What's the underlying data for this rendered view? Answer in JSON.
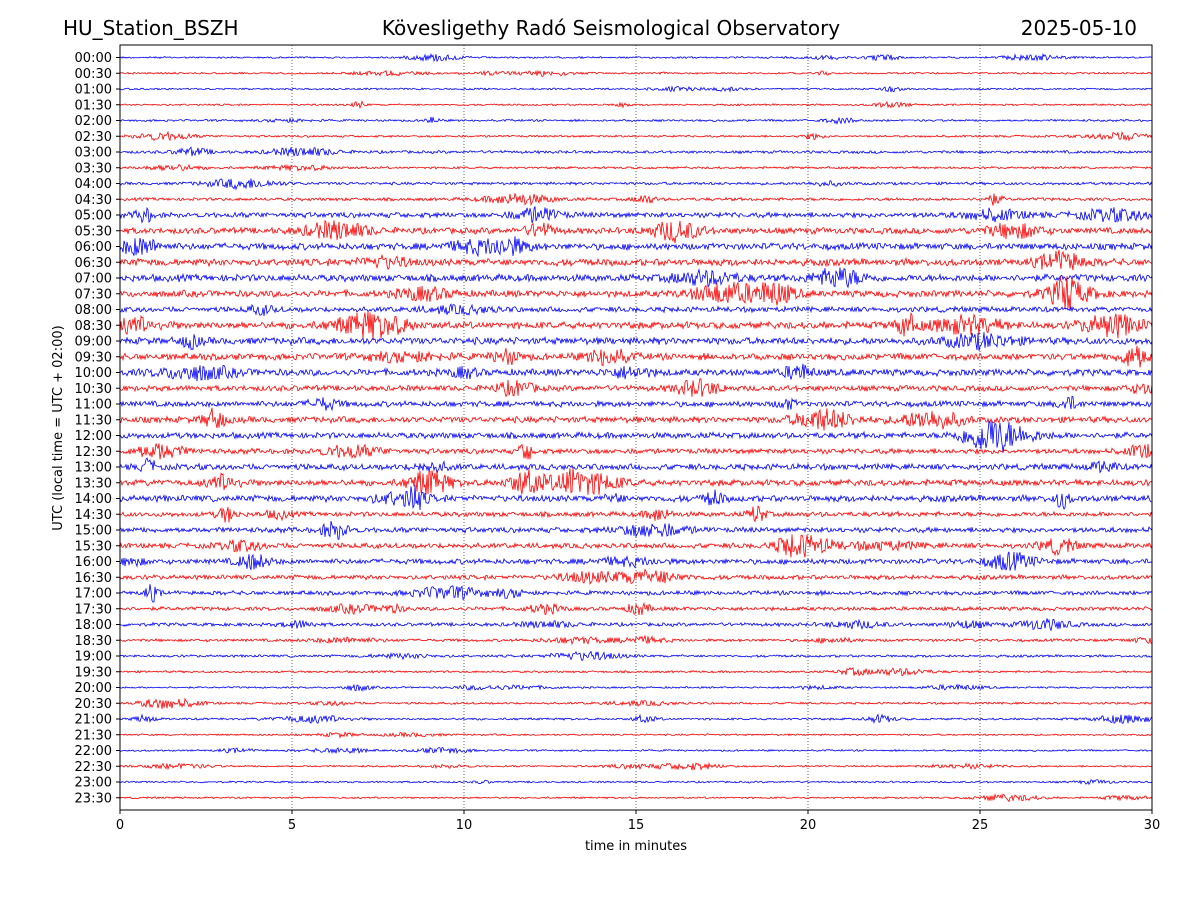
{
  "header": {
    "station": "HU_Station_BSZH",
    "observatory": "Kövesligethy Radó Seismological Observatory",
    "date": "2025-05-10"
  },
  "chart_data": {
    "type": "line",
    "title": "Kövesligethy Radó Seismological Observatory",
    "xlabel": "time in minutes",
    "ylabel": "UTC (local time = UTC + 02:00)",
    "xlim": [
      0,
      30
    ],
    "x_ticks": [
      0,
      5,
      10,
      15,
      20,
      25,
      30
    ],
    "grid": "vertical-dotted",
    "series_colors": [
      "#0000ff",
      "#ff0000"
    ],
    "rows": [
      {
        "label": "00:00",
        "amp": 1
      },
      {
        "label": "00:30",
        "amp": 1
      },
      {
        "label": "01:00",
        "amp": 1
      },
      {
        "label": "01:30",
        "amp": 1
      },
      {
        "label": "02:00",
        "amp": 1.2
      },
      {
        "label": "02:30",
        "amp": 1.2
      },
      {
        "label": "03:00",
        "amp": 1.6
      },
      {
        "label": "03:30",
        "amp": 1.3
      },
      {
        "label": "04:00",
        "amp": 1.6
      },
      {
        "label": "04:30",
        "amp": 1.8
      },
      {
        "label": "05:00",
        "amp": 3
      },
      {
        "label": "05:30",
        "amp": 3.5
      },
      {
        "label": "06:00",
        "amp": 3.8
      },
      {
        "label": "06:30",
        "amp": 4
      },
      {
        "label": "07:00",
        "amp": 4
      },
      {
        "label": "07:30",
        "amp": 3.8
      },
      {
        "label": "08:00",
        "amp": 3
      },
      {
        "label": "08:30",
        "amp": 4
      },
      {
        "label": "09:00",
        "amp": 4
      },
      {
        "label": "09:30",
        "amp": 3.8
      },
      {
        "label": "10:00",
        "amp": 3.8
      },
      {
        "label": "10:30",
        "amp": 3.2
      },
      {
        "label": "11:00",
        "amp": 3.2
      },
      {
        "label": "11:30",
        "amp": 3.5
      },
      {
        "label": "12:00",
        "amp": 3.4
      },
      {
        "label": "12:30",
        "amp": 3
      },
      {
        "label": "13:00",
        "amp": 3.4
      },
      {
        "label": "13:30",
        "amp": 3.6
      },
      {
        "label": "14:00",
        "amp": 3.6
      },
      {
        "label": "14:30",
        "amp": 2.8
      },
      {
        "label": "15:00",
        "amp": 3
      },
      {
        "label": "15:30",
        "amp": 3
      },
      {
        "label": "16:00",
        "amp": 3
      },
      {
        "label": "16:30",
        "amp": 2.6
      },
      {
        "label": "17:00",
        "amp": 2.4
      },
      {
        "label": "17:30",
        "amp": 2.2
      },
      {
        "label": "18:00",
        "amp": 2
      },
      {
        "label": "18:30",
        "amp": 1.6
      },
      {
        "label": "19:00",
        "amp": 1.4
      },
      {
        "label": "19:30",
        "amp": 1.2
      },
      {
        "label": "20:00",
        "amp": 1
      },
      {
        "label": "20:30",
        "amp": 1.2
      },
      {
        "label": "21:00",
        "amp": 1.2
      },
      {
        "label": "21:30",
        "amp": 1
      },
      {
        "label": "22:00",
        "amp": 1
      },
      {
        "label": "22:30",
        "amp": 1
      },
      {
        "label": "23:00",
        "amp": 1
      },
      {
        "label": "23:30",
        "amp": 1
      }
    ]
  }
}
